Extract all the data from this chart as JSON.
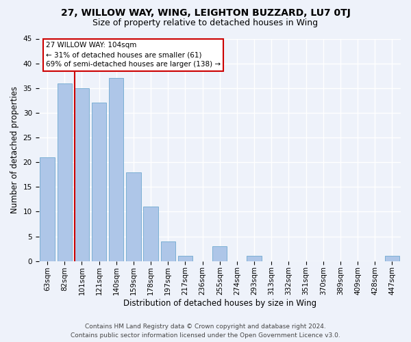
{
  "title1": "27, WILLOW WAY, WING, LEIGHTON BUZZARD, LU7 0TJ",
  "title2": "Size of property relative to detached houses in Wing",
  "xlabel": "Distribution of detached houses by size in Wing",
  "ylabel": "Number of detached properties",
  "categories": [
    "63sqm",
    "82sqm",
    "101sqm",
    "121sqm",
    "140sqm",
    "159sqm",
    "178sqm",
    "197sqm",
    "217sqm",
    "236sqm",
    "255sqm",
    "274sqm",
    "293sqm",
    "313sqm",
    "332sqm",
    "351sqm",
    "370sqm",
    "389sqm",
    "409sqm",
    "428sqm",
    "447sqm"
  ],
  "values": [
    21,
    36,
    35,
    32,
    37,
    18,
    11,
    4,
    1,
    0,
    3,
    0,
    1,
    0,
    0,
    0,
    0,
    0,
    0,
    0,
    1
  ],
  "bar_color": "#aec6e8",
  "bar_edge_color": "#7bafd4",
  "vline_index": 2,
  "vline_color": "#cc0000",
  "annotation_text": "27 WILLOW WAY: 104sqm\n← 31% of detached houses are smaller (61)\n69% of semi-detached houses are larger (138) →",
  "annotation_box_color": "#ffffff",
  "annotation_box_edge_color": "#cc0000",
  "ylim": [
    0,
    45
  ],
  "yticks": [
    0,
    5,
    10,
    15,
    20,
    25,
    30,
    35,
    40,
    45
  ],
  "footer1": "Contains HM Land Registry data © Crown copyright and database right 2024.",
  "footer2": "Contains public sector information licensed under the Open Government Licence v3.0.",
  "background_color": "#eef2fa",
  "grid_color": "#ffffff",
  "title1_fontsize": 10,
  "title2_fontsize": 9,
  "xlabel_fontsize": 8.5,
  "ylabel_fontsize": 8.5,
  "tick_fontsize": 7.5,
  "annotation_fontsize": 7.5,
  "footer_fontsize": 6.5
}
